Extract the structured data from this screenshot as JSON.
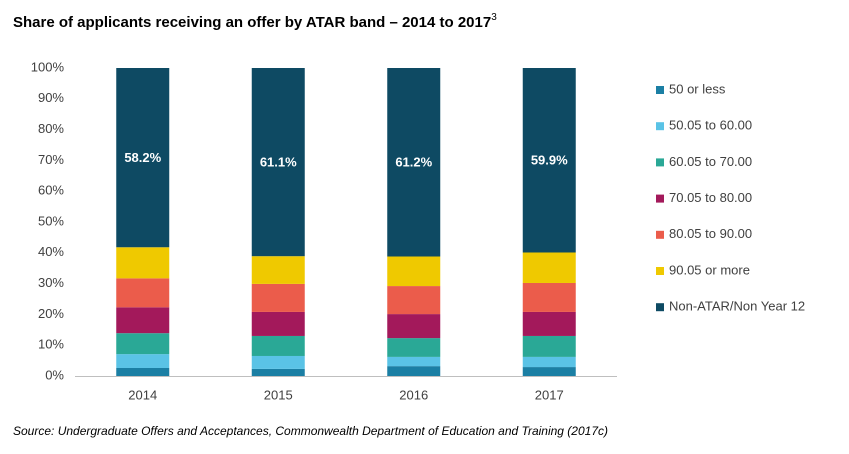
{
  "chart_data": {
    "type": "stacked_bar",
    "title": "Share of applicants receiving an offer by ATAR band – 2014 to 2017",
    "title_superscript": "3",
    "source": "Source: Undergraduate Offers and Acceptances, Commonwealth Department of Education and Training (2017c)",
    "categories": [
      "2014",
      "2015",
      "2016",
      "2017"
    ],
    "ylim": [
      0,
      100
    ],
    "yticks": [
      {
        "value": 0,
        "label": "0%"
      },
      {
        "value": 10,
        "label": "10%"
      },
      {
        "value": 20,
        "label": "20%"
      },
      {
        "value": 30,
        "label": "30%"
      },
      {
        "value": 40,
        "label": "40%"
      },
      {
        "value": 50,
        "label": "50%"
      },
      {
        "value": 60,
        "label": "60%"
      },
      {
        "value": 70,
        "label": "70%"
      },
      {
        "value": 80,
        "label": "80%"
      },
      {
        "value": 90,
        "label": "90%"
      },
      {
        "value": 100,
        "label": "100%"
      }
    ],
    "grid": false,
    "legend": "right",
    "series": [
      {
        "name": "50 or less",
        "color": "#1b7fa4",
        "values": [
          2.6,
          2.3,
          3.2,
          2.9
        ]
      },
      {
        "name": "50.05 to 60.00",
        "color": "#5ac3e6",
        "values": [
          4.5,
          4.2,
          3.0,
          3.3
        ]
      },
      {
        "name": "60.05 to 70.00",
        "color": "#2aa896",
        "values": [
          6.8,
          6.5,
          6.1,
          6.8
        ]
      },
      {
        "name": "70.05 to 80.00",
        "color": "#a3195b",
        "values": [
          8.4,
          7.8,
          7.8,
          7.8
        ]
      },
      {
        "name": "80.05 to 90.00",
        "color": "#eb5c4b",
        "values": [
          9.4,
          9.1,
          9.1,
          9.4
        ]
      },
      {
        "name": "90.05 or more",
        "color": "#efc900",
        "values": [
          10.1,
          9.0,
          9.6,
          9.9
        ]
      },
      {
        "name": "Non-ATAR/Non Year 12",
        "color": "#0e4a63",
        "values": [
          58.2,
          61.1,
          61.2,
          59.9
        ],
        "value_labels": [
          "58.2%",
          "61.1%",
          "61.2%",
          "59.9%"
        ]
      }
    ]
  }
}
